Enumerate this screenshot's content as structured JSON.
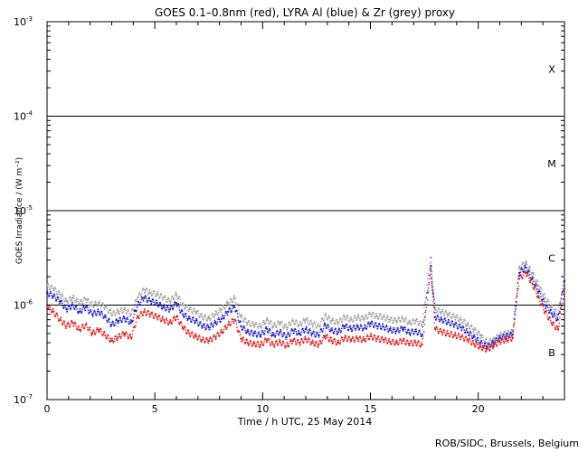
{
  "chart_data": {
    "type": "scatter",
    "title": "GOES 0.1–0.8nm (red), LYRA Al (blue) & Zr (grey) proxy",
    "xlabel": "Time / h UTC, 25 May 2014",
    "ylabel": "GOES Irradiance / (W m⁻²)",
    "xlim": [
      0,
      24
    ],
    "ylim": [
      1e-07,
      0.001
    ],
    "yscale": "log",
    "x_ticks": [
      0,
      5,
      10,
      15,
      20
    ],
    "x_tick_labels": [
      "0",
      "5",
      "10",
      "15",
      "20"
    ],
    "y_ticks": [
      1e-07,
      1e-06,
      1e-05,
      0.0001,
      0.001
    ],
    "y_tick_mantissa": "10",
    "y_tick_exponents": [
      "-7",
      "-6",
      "-5",
      "-4",
      "-3"
    ],
    "threshold_lines": [
      1e-06,
      1e-05,
      0.0001
    ],
    "flare_classes": [
      {
        "label": "X",
        "y": 0.000316
      },
      {
        "label": "M",
        "y": 3.16e-05
      },
      {
        "label": "C",
        "y": 3.16e-06
      },
      {
        "label": "B",
        "y": 3.16e-07
      }
    ],
    "grid": false,
    "series": [
      {
        "color": "#a0a0a0",
        "x": [
          0.0,
          0.3,
          0.6,
          0.9,
          1.2,
          1.5,
          1.8,
          2.1,
          2.4,
          2.7,
          3.0,
          3.3,
          3.6,
          3.9,
          4.2,
          4.5,
          4.8,
          5.1,
          5.4,
          5.7,
          6.0,
          6.3,
          6.6,
          6.9,
          7.2,
          7.5,
          7.8,
          8.1,
          8.4,
          8.7,
          9.0,
          9.3,
          9.6,
          9.9,
          10.2,
          10.5,
          10.8,
          11.1,
          11.4,
          11.7,
          12.0,
          12.3,
          12.6,
          12.9,
          13.2,
          13.5,
          13.8,
          14.1,
          14.4,
          14.7,
          15.0,
          15.3,
          15.6,
          15.9,
          16.2,
          16.5,
          16.8,
          17.1,
          17.4,
          17.8,
          18.0,
          18.3,
          18.6,
          18.9,
          19.2,
          19.5,
          19.8,
          20.1,
          20.4,
          20.7,
          21.0,
          21.3,
          21.6,
          21.9,
          22.2,
          22.5,
          22.8,
          23.1,
          23.4,
          23.7,
          24.0
        ],
        "y": [
          1.6e-06,
          1.5e-06,
          1.3e-06,
          1.1e-06,
          1.2e-06,
          1.05e-06,
          1.15e-06,
          1e-06,
          1.05e-06,
          9.5e-07,
          8e-07,
          8.5e-07,
          9e-07,
          8e-07,
          1.2e-06,
          1.45e-06,
          1.35e-06,
          1.3e-06,
          1.2e-06,
          1.1e-06,
          1.3e-06,
          1e-06,
          9e-07,
          8.5e-07,
          7.5e-07,
          7.2e-07,
          8e-07,
          9e-07,
          1.05e-06,
          1.2e-06,
          7.5e-07,
          6.5e-07,
          6.2e-07,
          6e-07,
          7e-07,
          6e-07,
          6.5e-07,
          5.8e-07,
          6.8e-07,
          6.2e-07,
          7e-07,
          6.3e-07,
          6e-07,
          7.8e-07,
          6.8e-07,
          6.5e-07,
          7.5e-07,
          7e-07,
          7.4e-07,
          7.2e-07,
          8e-07,
          7.6e-07,
          7.5e-07,
          7e-07,
          6.8e-07,
          7.2e-07,
          6.5e-07,
          6.8e-07,
          6.2e-07,
          3.2e-06,
          9e-07,
          8.5e-07,
          8e-07,
          7.5e-07,
          7e-07,
          6.2e-07,
          5.5e-07,
          4.8e-07,
          4e-07,
          4.3e-07,
          4.8e-07,
          5e-07,
          5.2e-07,
          2.5e-06,
          2.8e-06,
          2.2e-06,
          1.6e-06,
          1.2e-06,
          9.5e-07,
          8e-07,
          2e-06
        ]
      },
      {
        "color": "#1818c8",
        "x": [
          0.0,
          0.3,
          0.6,
          0.9,
          1.2,
          1.5,
          1.8,
          2.1,
          2.4,
          2.7,
          3.0,
          3.3,
          3.6,
          3.9,
          4.2,
          4.5,
          4.8,
          5.1,
          5.4,
          5.7,
          6.0,
          6.3,
          6.6,
          6.9,
          7.2,
          7.5,
          7.8,
          8.1,
          8.4,
          8.7,
          9.0,
          9.3,
          9.6,
          9.9,
          10.2,
          10.5,
          10.8,
          11.1,
          11.4,
          11.7,
          12.0,
          12.3,
          12.6,
          12.9,
          13.2,
          13.5,
          13.8,
          14.1,
          14.4,
          14.7,
          15.0,
          15.3,
          15.6,
          15.9,
          16.2,
          16.5,
          16.8,
          17.1,
          17.4,
          17.8,
          18.0,
          18.3,
          18.6,
          18.9,
          19.2,
          19.5,
          19.8,
          20.1,
          20.4,
          20.7,
          21.0,
          21.3,
          21.6,
          21.9,
          22.2,
          22.5,
          22.8,
          23.1,
          23.4,
          23.7,
          24.0
        ],
        "y": [
          1.35e-06,
          1.25e-06,
          1.1e-06,
          9e-07,
          1e-06,
          8.5e-07,
          9.5e-07,
          8e-07,
          8.5e-07,
          7.5e-07,
          6.2e-07,
          6.8e-07,
          7.2e-07,
          6.5e-07,
          1e-06,
          1.2e-06,
          1.1e-06,
          1.05e-06,
          9.5e-07,
          9e-07,
          1.05e-06,
          8e-07,
          7.2e-07,
          6.8e-07,
          6e-07,
          5.8e-07,
          6.5e-07,
          7.2e-07,
          8.5e-07,
          9.5e-07,
          6e-07,
          5.2e-07,
          5e-07,
          4.8e-07,
          5.6e-07,
          4.8e-07,
          5.2e-07,
          4.6e-07,
          5.4e-07,
          5e-07,
          5.6e-07,
          5e-07,
          4.8e-07,
          6.2e-07,
          5.4e-07,
          5.2e-07,
          6e-07,
          5.6e-07,
          5.9e-07,
          5.7e-07,
          6.4e-07,
          6e-07,
          5.9e-07,
          5.5e-07,
          5.3e-07,
          5.7e-07,
          5.1e-07,
          5.3e-07,
          4.9e-07,
          2.6e-06,
          7.5e-07,
          7e-07,
          6.6e-07,
          6.2e-07,
          5.8e-07,
          5.2e-07,
          4.6e-07,
          4e-07,
          3.6e-07,
          4e-07,
          4.5e-07,
          4.7e-07,
          4.9e-07,
          2.2e-06,
          2.5e-06,
          1.9e-06,
          1.4e-06,
          1e-06,
          8.2e-07,
          7e-07,
          1.8e-06
        ]
      },
      {
        "color": "#e01818",
        "x": [
          0.0,
          0.3,
          0.6,
          0.9,
          1.2,
          1.5,
          1.8,
          2.1,
          2.4,
          2.7,
          3.0,
          3.3,
          3.6,
          3.9,
          4.2,
          4.5,
          4.8,
          5.1,
          5.4,
          5.7,
          6.0,
          6.3,
          6.6,
          6.9,
          7.2,
          7.5,
          7.8,
          8.1,
          8.4,
          8.7,
          9.0,
          9.3,
          9.6,
          9.9,
          10.2,
          10.5,
          10.8,
          11.1,
          11.4,
          11.7,
          12.0,
          12.3,
          12.6,
          12.9,
          13.2,
          13.5,
          13.8,
          14.1,
          14.4,
          14.7,
          15.0,
          15.3,
          15.6,
          15.9,
          16.2,
          16.5,
          16.8,
          17.1,
          17.4,
          17.8,
          18.0,
          18.3,
          18.6,
          18.9,
          19.2,
          19.5,
          19.8,
          20.1,
          20.4,
          20.7,
          21.0,
          21.3,
          21.6,
          21.9,
          22.2,
          22.5,
          22.8,
          23.1,
          23.4,
          23.7,
          24.0
        ],
        "y": [
          1e-06,
          8.5e-07,
          7e-07,
          6e-07,
          6.5e-07,
          5.5e-07,
          6.2e-07,
          5e-07,
          5.5e-07,
          4.8e-07,
          4.2e-07,
          4.6e-07,
          5e-07,
          4.5e-07,
          7.5e-07,
          8.5e-07,
          8e-07,
          7.5e-07,
          7e-07,
          6.5e-07,
          7.5e-07,
          5.8e-07,
          5e-07,
          4.7e-07,
          4.3e-07,
          4.2e-07,
          4.6e-07,
          5.2e-07,
          6.2e-07,
          7e-07,
          4.4e-07,
          4e-07,
          3.9e-07,
          3.8e-07,
          4.3e-07,
          3.8e-07,
          4.1e-07,
          3.7e-07,
          4.2e-07,
          4e-07,
          4.4e-07,
          4e-07,
          3.8e-07,
          4.7e-07,
          4.2e-07,
          4e-07,
          4.5e-07,
          4.3e-07,
          4.4e-07,
          4.3e-07,
          4.7e-07,
          4.4e-07,
          4.3e-07,
          4.1e-07,
          4e-07,
          4.2e-07,
          3.9e-07,
          4e-07,
          3.8e-07,
          2.3e-06,
          5.6e-07,
          5.2e-07,
          5e-07,
          4.8e-07,
          4.6e-07,
          4.3e-07,
          3.9e-07,
          3.6e-07,
          3.4e-07,
          3.7e-07,
          4.1e-07,
          4.3e-07,
          4.5e-07,
          1.9e-06,
          2.2e-06,
          1.7e-06,
          1.2e-06,
          8.5e-07,
          6.5e-07,
          5.5e-07,
          1.5e-06
        ]
      }
    ]
  },
  "footer": {
    "credit": "ROB/SIDC, Brussels, Belgium"
  }
}
